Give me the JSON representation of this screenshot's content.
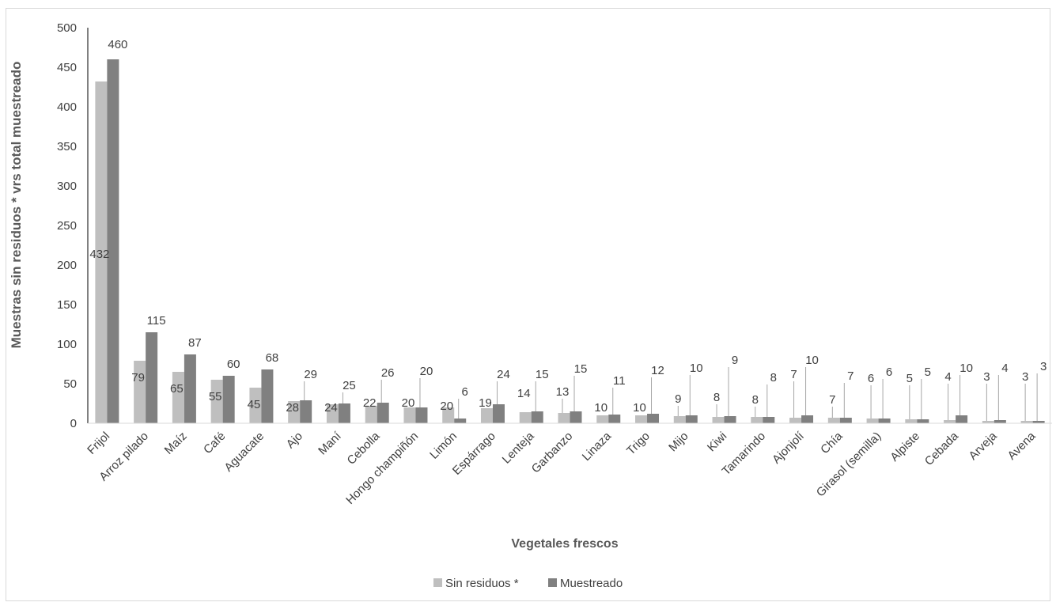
{
  "chart_data": {
    "type": "bar",
    "title": "",
    "xlabel": "Vegetales frescos",
    "ylabel": "Muestras sin residuos *  vrs total muestreado",
    "ylim": [
      0,
      500
    ],
    "yticks": [
      "0",
      "50",
      "100",
      "150",
      "200",
      "250",
      "300",
      "350",
      "400",
      "450",
      "500"
    ],
    "grid": false,
    "legend_position": "bottom",
    "categories": [
      "Frijol",
      "Arroz pilado",
      "Maíz",
      "Café",
      "Aguacate",
      "Ajo",
      "Maní",
      "Cebolla",
      "Hongo champiñón",
      "Limón",
      "Espárrago",
      "Lenteja",
      "Garbanzo",
      "Linaza",
      "Trigo",
      "Mijo",
      "Kiwi",
      "Tamarindo",
      "Ajonjolí",
      "Chía",
      "Girasol (semilla)",
      "Alpiste",
      "Cebada",
      "Arveja",
      "Avena"
    ],
    "series": [
      {
        "name": "Sin residuos *",
        "color": "#bfbfbf",
        "values": [
          432,
          79,
          65,
          55,
          45,
          28,
          24,
          22,
          20,
          20,
          19,
          14,
          13,
          10,
          10,
          9,
          8,
          8,
          7,
          7,
          6,
          5,
          4,
          3,
          3
        ],
        "labels": [
          "432",
          "79",
          "65",
          "55",
          "45",
          "28",
          "24",
          "22",
          "20",
          "20",
          "19",
          "14",
          "13",
          "10",
          "10",
          "9",
          "8",
          "8",
          "7",
          "7",
          "6",
          "5",
          "4",
          "3",
          "3"
        ]
      },
      {
        "name": "Muestreado",
        "color": "#808080",
        "values": [
          460,
          115,
          87,
          60,
          68,
          29,
          25,
          26,
          20,
          6,
          24,
          15,
          15,
          11,
          12,
          10,
          9,
          8,
          10,
          7,
          6,
          5,
          10,
          4,
          3
        ],
        "labels": [
          "460",
          "115",
          "87",
          "60",
          "68",
          "29",
          "25",
          "26",
          "20",
          "6",
          "24",
          "15",
          "15",
          "11",
          "12",
          "10",
          "9",
          "8",
          "10",
          "7",
          "6",
          "5",
          "10",
          "4",
          "3"
        ]
      }
    ]
  }
}
